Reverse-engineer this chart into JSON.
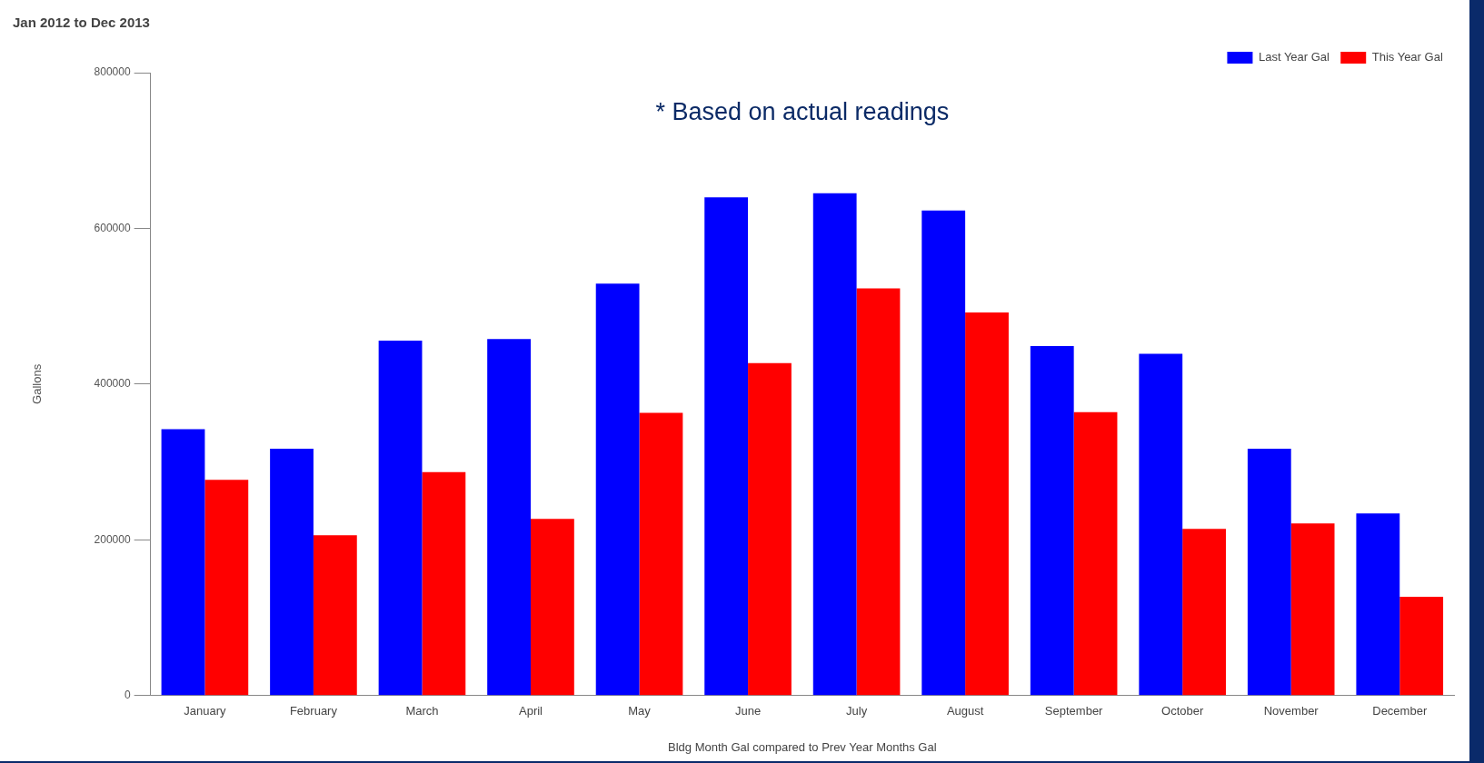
{
  "chart_data": {
    "type": "bar",
    "title": "Jan 2012 to Dec 2013",
    "xlabel": "Bldg Month Gal compared to Prev Year Months Gal",
    "ylabel": "Gallons",
    "annotations": [
      "* Based on actual readings"
    ],
    "categories": [
      "January",
      "February",
      "March",
      "April",
      "May",
      "June",
      "July",
      "August",
      "September",
      "October",
      "November",
      "December"
    ],
    "series": [
      {
        "name": "Last Year Gal",
        "color": "#0000ff",
        "values": [
          342000,
          317000,
          456000,
          458000,
          529000,
          640000,
          645000,
          623000,
          449000,
          439000,
          317000,
          234000
        ]
      },
      {
        "name": "This Year Gal",
        "color": "#ff0000",
        "values": [
          277000,
          206000,
          287000,
          227000,
          363000,
          427000,
          523000,
          492000,
          364000,
          214000,
          221000,
          127000
        ]
      }
    ],
    "ylim": [
      0,
      800000
    ],
    "yticks": [
      0,
      200000,
      400000,
      600000,
      800000
    ],
    "grid": false,
    "legend": "top right"
  }
}
